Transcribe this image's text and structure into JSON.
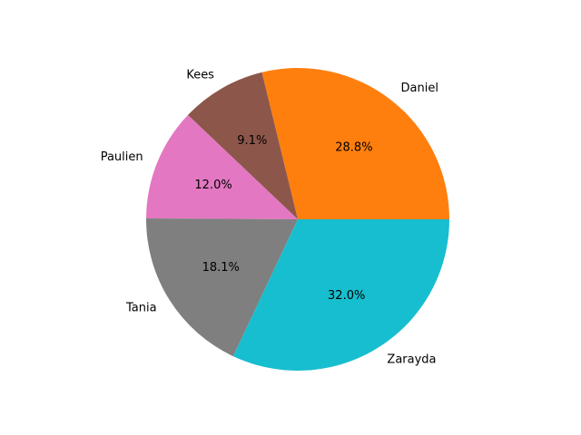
{
  "chart_data": {
    "type": "pie",
    "title": "",
    "slices": [
      {
        "label": "Daniel",
        "value": 28.8,
        "pct_label": "28.8%",
        "color": "#ff7f0e"
      },
      {
        "label": "Kees",
        "value": 9.1,
        "pct_label": "9.1%",
        "color": "#8c564b"
      },
      {
        "label": "Paulien",
        "value": 12.0,
        "pct_label": "12.0%",
        "color": "#e377c2"
      },
      {
        "label": "Tania",
        "value": 18.1,
        "pct_label": "18.1%",
        "color": "#7f7f7f"
      },
      {
        "label": "Zarayda",
        "value": 32.0,
        "pct_label": "32.0%",
        "color": "#17becf"
      }
    ],
    "start_angle_deg": 0,
    "direction": "counterclockwise"
  }
}
